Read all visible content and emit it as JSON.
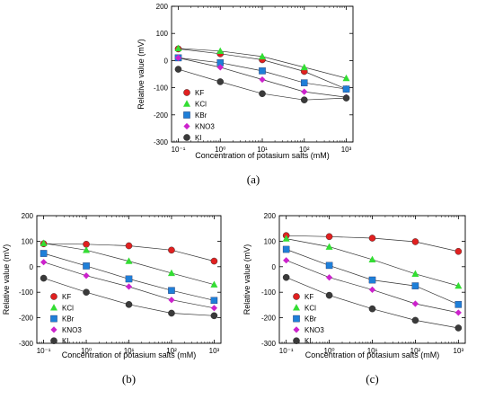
{
  "chart_data": [
    {
      "type": "line",
      "panel": "(a)",
      "x_scale": "log",
      "xlabel": "Concentration of potasium salts (mM)",
      "ylabel": "Relative value (mV)",
      "ylim": [
        -300,
        200
      ],
      "yticks": [
        -300,
        -200,
        -100,
        0,
        100,
        200
      ],
      "xticks": [
        "10⁻¹",
        "10⁰",
        "10¹",
        "10²",
        "10³"
      ],
      "x": [
        0.1,
        1,
        10,
        100,
        1000
      ],
      "legend_position": "bottom-left",
      "series": [
        {
          "name": "KF",
          "marker": "circle",
          "color": "#e02020",
          "values": [
            43,
            25,
            3,
            -40,
            -105
          ]
        },
        {
          "name": "KCl",
          "marker": "triangle",
          "color": "#33dd33",
          "values": [
            45,
            35,
            15,
            -25,
            -65
          ]
        },
        {
          "name": "KBr",
          "marker": "square",
          "color": "#1f7fd8",
          "values": [
            10,
            -8,
            -38,
            -82,
            -105
          ]
        },
        {
          "name": "KNO3",
          "marker": "diamond",
          "color": "#cc22cc",
          "values": [
            10,
            -25,
            -70,
            -115,
            -135
          ]
        },
        {
          "name": "KI",
          "marker": "circle",
          "color": "#3a3a3a",
          "values": [
            -32,
            -78,
            -122,
            -145,
            -138
          ]
        }
      ]
    },
    {
      "type": "line",
      "panel": "(b)",
      "x_scale": "log",
      "xlabel": "Concentration of potasium salts (mM)",
      "ylabel": "Relative value (mV)",
      "ylim": [
        -300,
        200
      ],
      "yticks": [
        -300,
        -200,
        -100,
        0,
        100,
        200
      ],
      "xticks": [
        "10⁻¹",
        "10⁰",
        "10¹",
        "10²",
        "10³"
      ],
      "x": [
        0.1,
        1,
        10,
        100,
        1000
      ],
      "legend_position": "bottom-left",
      "series": [
        {
          "name": "KF",
          "marker": "circle",
          "color": "#e02020",
          "values": [
            90,
            88,
            82,
            65,
            22
          ]
        },
        {
          "name": "KCl",
          "marker": "triangle",
          "color": "#33dd33",
          "values": [
            92,
            65,
            22,
            -25,
            -70
          ]
        },
        {
          "name": "KBr",
          "marker": "square",
          "color": "#1f7fd8",
          "values": [
            52,
            3,
            -48,
            -93,
            -132
          ]
        },
        {
          "name": "KNO3",
          "marker": "diamond",
          "color": "#cc22cc",
          "values": [
            18,
            -35,
            -78,
            -130,
            -162
          ]
        },
        {
          "name": "KI",
          "marker": "circle",
          "color": "#3a3a3a",
          "values": [
            -45,
            -100,
            -148,
            -182,
            -192
          ]
        }
      ]
    },
    {
      "type": "line",
      "panel": "(c)",
      "x_scale": "log",
      "xlabel": "Concentration of potasium salts (mM)",
      "ylabel": "Relative value (mV)",
      "ylim": [
        -300,
        200
      ],
      "yticks": [
        -300,
        -200,
        -100,
        0,
        100,
        200
      ],
      "xticks": [
        "10⁻¹",
        "10⁰",
        "10¹",
        "10²",
        "10³"
      ],
      "x": [
        0.1,
        1,
        10,
        100,
        1000
      ],
      "legend_position": "bottom-left",
      "series": [
        {
          "name": "KF",
          "marker": "circle",
          "color": "#e02020",
          "values": [
            122,
            118,
            112,
            98,
            60
          ]
        },
        {
          "name": "KCl",
          "marker": "triangle",
          "color": "#33dd33",
          "values": [
            110,
            78,
            28,
            -28,
            -75
          ]
        },
        {
          "name": "KBr",
          "marker": "square",
          "color": "#1f7fd8",
          "values": [
            68,
            5,
            -52,
            -75,
            -148
          ]
        },
        {
          "name": "KNO3",
          "marker": "diamond",
          "color": "#cc22cc",
          "values": [
            25,
            -42,
            -90,
            -145,
            -180
          ]
        },
        {
          "name": "KI",
          "marker": "circle",
          "color": "#3a3a3a",
          "values": [
            -42,
            -112,
            -165,
            -210,
            -240
          ]
        }
      ]
    }
  ]
}
